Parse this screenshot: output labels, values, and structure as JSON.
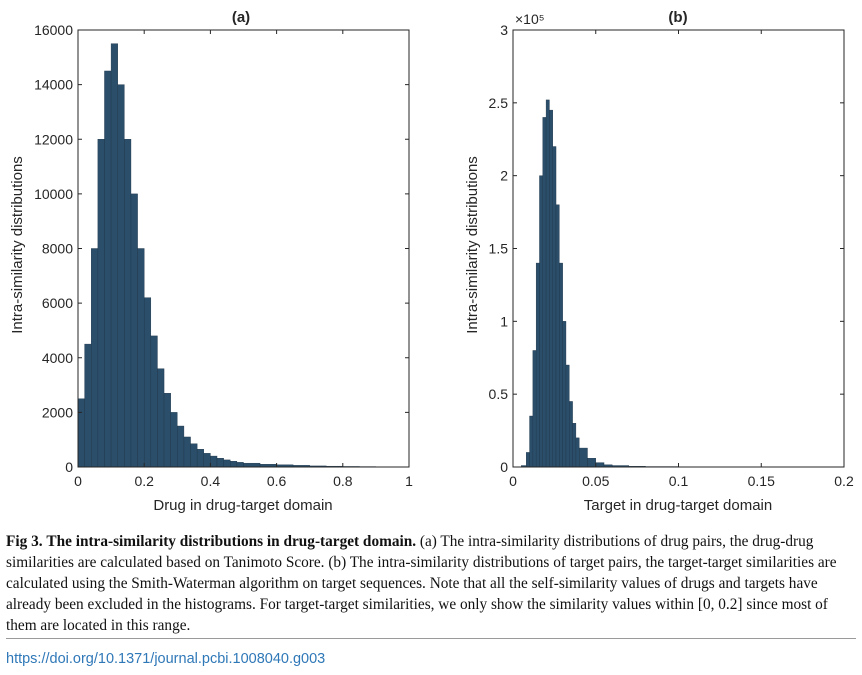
{
  "figure": {
    "caption_label": "Fig 3.",
    "caption_title": "The intra-similarity distributions in drug-target domain.",
    "caption_body": "(a) The intra-similarity distributions of drug pairs, the drug-drug similarities are calculated based on Tanimoto Score. (b) The intra-similarity distributions of target pairs, the target-target similarities are calculated using the Smith-Waterman algorithm on target sequences. Note that all the self-similarity values of drugs and targets have already been excluded in the histograms. For target-target similarities, we only show the similarity values within [0, 0.2] since most of them are located in this range.",
    "doi": "https://doi.org/10.1371/journal.pcbi.1008040.g003"
  },
  "colors": {
    "bar": "#2b4e6a",
    "bar_edge": "#1d3549",
    "axis": "#262626"
  },
  "chart_data": [
    {
      "type": "bar",
      "title": "(a)",
      "xlabel": "Drug in drug-target domain",
      "ylabel": "Intra-similarity distributions",
      "xlim": [
        0,
        1
      ],
      "ylim": [
        0,
        16000
      ],
      "xticks": [
        "0",
        "0.2",
        "0.4",
        "0.6",
        "0.8",
        "1"
      ],
      "yticks": [
        "0",
        "2000",
        "4000",
        "6000",
        "8000",
        "10000",
        "12000",
        "14000",
        "16000"
      ],
      "multiplier": "",
      "x": [
        0.0,
        0.02,
        0.04,
        0.06,
        0.08,
        0.1,
        0.12,
        0.14,
        0.16,
        0.18,
        0.2,
        0.22,
        0.24,
        0.26,
        0.28,
        0.3,
        0.32,
        0.34,
        0.36,
        0.38,
        0.4,
        0.42,
        0.44,
        0.46,
        0.48,
        0.5,
        0.55,
        0.6,
        0.65,
        0.7,
        0.75,
        0.8,
        0.85,
        0.9,
        0.95,
        1.0
      ],
      "y": [
        2500,
        4500,
        8000,
        12000,
        14500,
        15500,
        14000,
        12000,
        10000,
        8000,
        6200,
        4800,
        3600,
        2700,
        2000,
        1500,
        1100,
        850,
        650,
        500,
        400,
        320,
        260,
        210,
        170,
        140,
        100,
        80,
        60,
        40,
        30,
        20,
        15,
        10,
        5,
        0
      ]
    },
    {
      "type": "bar",
      "title": "(b)",
      "xlabel": "Target in drug-target domain",
      "ylabel": "Intra-similarity distributions",
      "xlim": [
        0,
        0.2
      ],
      "ylim": [
        0,
        3
      ],
      "xticks": [
        "0",
        "0.05",
        "0.1",
        "0.15",
        "0.2"
      ],
      "yticks": [
        "0",
        "0.5",
        "1",
        "1.5",
        "2",
        "2.5",
        "3"
      ],
      "multiplier": "×10⁵",
      "x": [
        0.0,
        0.005,
        0.008,
        0.01,
        0.012,
        0.014,
        0.016,
        0.018,
        0.02,
        0.022,
        0.024,
        0.026,
        0.028,
        0.03,
        0.032,
        0.034,
        0.036,
        0.038,
        0.04,
        0.045,
        0.05,
        0.055,
        0.06,
        0.07,
        0.08,
        0.1,
        0.15,
        0.2
      ],
      "y": [
        0,
        0.01,
        0.1,
        0.35,
        0.8,
        1.4,
        2.0,
        2.4,
        2.52,
        2.45,
        2.2,
        1.8,
        1.4,
        1.0,
        0.7,
        0.45,
        0.3,
        0.2,
        0.13,
        0.06,
        0.03,
        0.015,
        0.01,
        0.005,
        0.003,
        0.001,
        0,
        0
      ]
    }
  ]
}
